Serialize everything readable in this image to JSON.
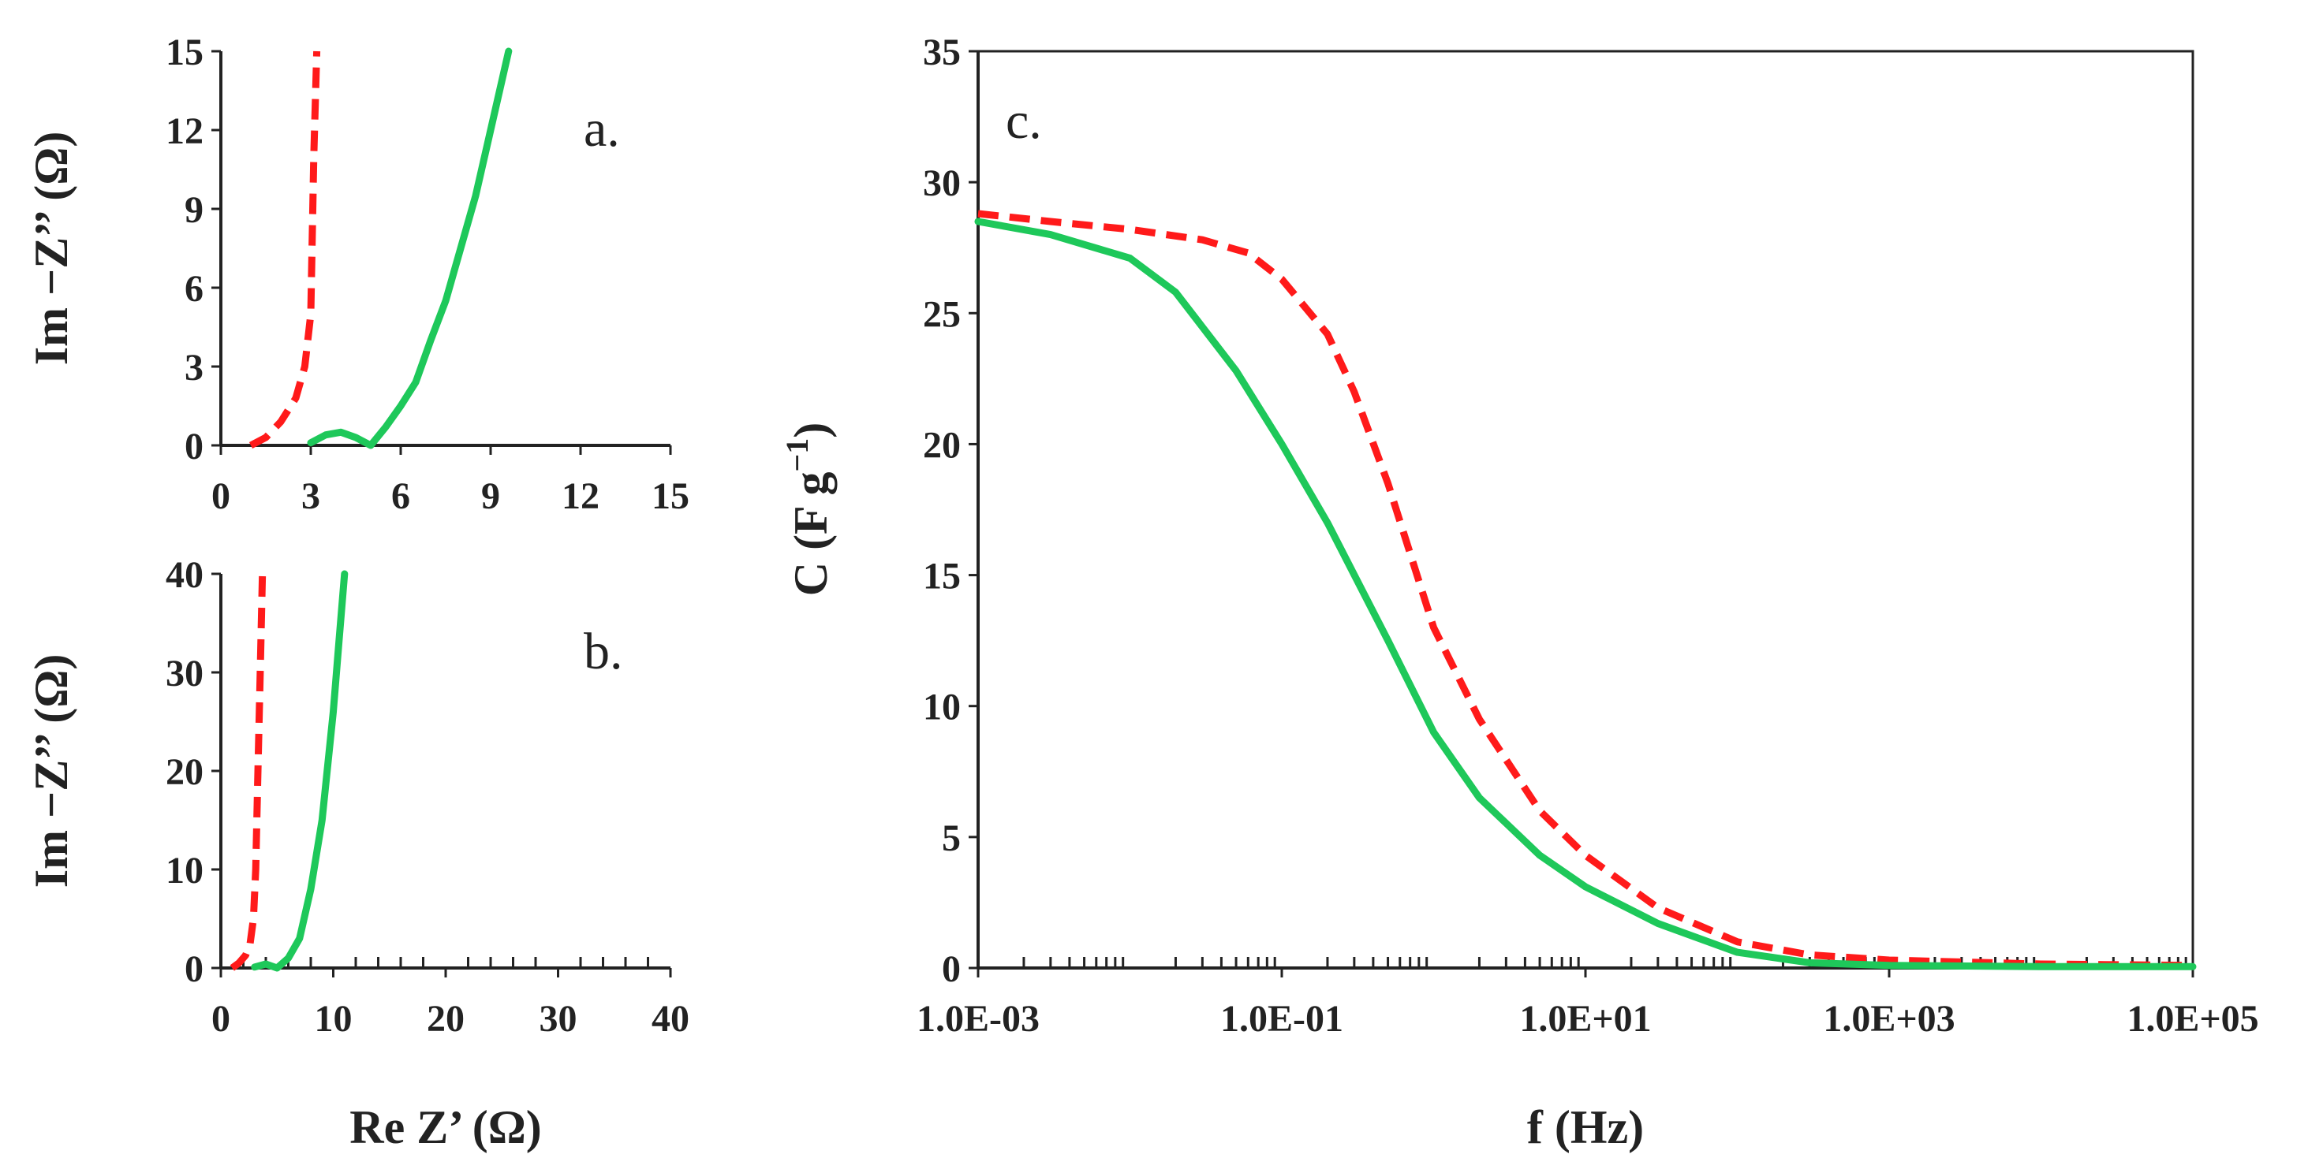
{
  "colors": {
    "series_a": "#ff1a1a",
    "series_b": "#1ec85a",
    "axis": "#222222"
  },
  "chart_data": [
    {
      "id": "a",
      "type": "line",
      "panel_label": "a.",
      "ylabel": "Im −Z’’ (Ω)",
      "xlabel": "",
      "xlim": [
        0,
        15
      ],
      "ylim": [
        0,
        15
      ],
      "xticks": [
        0,
        3,
        6,
        9,
        12,
        15
      ],
      "xtick_labels": [
        "0",
        "3",
        "6",
        "9",
        "12",
        "15"
      ],
      "yticks": [
        0,
        3,
        6,
        9,
        12,
        15
      ],
      "ytick_labels": [
        "0",
        "3",
        "6",
        "9",
        "12",
        "15"
      ],
      "series": [
        {
          "name": "red dashed",
          "style": "dashed",
          "color": "#ff1a1a",
          "x": [
            1.0,
            1.5,
            2.0,
            2.5,
            2.8,
            3.0,
            3.05,
            3.1,
            3.15,
            3.2
          ],
          "y": [
            0.0,
            0.3,
            0.9,
            1.8,
            3.0,
            5.0,
            8.0,
            11.0,
            13.0,
            15.0
          ]
        },
        {
          "name": "green solid",
          "style": "solid",
          "color": "#1ec85a",
          "x": [
            3.0,
            3.5,
            4.0,
            4.5,
            5.0,
            5.5,
            6.0,
            6.5,
            7.0,
            7.5,
            8.0,
            8.5,
            9.0,
            9.3,
            9.6
          ],
          "y": [
            0.1,
            0.4,
            0.5,
            0.3,
            0.0,
            0.7,
            1.5,
            2.4,
            4.0,
            5.5,
            7.5,
            9.5,
            12.0,
            13.5,
            15.0
          ]
        }
      ]
    },
    {
      "id": "b",
      "type": "line",
      "panel_label": "b.",
      "ylabel": "Im −Z’’ (Ω)",
      "xlabel": "Re Z’ (Ω)",
      "xlim": [
        0,
        40
      ],
      "ylim": [
        0,
        40
      ],
      "xticks": [
        0,
        10,
        20,
        30,
        40
      ],
      "xtick_labels": [
        "0",
        "10",
        "20",
        "30",
        "40"
      ],
      "yticks": [
        0,
        10,
        20,
        30,
        40
      ],
      "ytick_labels": [
        "0",
        "10",
        "20",
        "30",
        "40"
      ],
      "series": [
        {
          "name": "red dashed",
          "style": "dashed",
          "color": "#ff1a1a",
          "x": [
            1.0,
            1.6,
            2.2,
            2.6,
            2.9,
            3.1,
            3.3,
            3.5,
            3.7
          ],
          "y": [
            0.0,
            0.5,
            1.3,
            2.5,
            5.0,
            10.0,
            20.0,
            30.0,
            40.0
          ]
        },
        {
          "name": "green solid",
          "style": "solid",
          "color": "#1ec85a",
          "x": [
            3.0,
            4.0,
            5.0,
            6.0,
            7.0,
            8.0,
            9.0,
            10.0,
            10.5,
            11.0
          ],
          "y": [
            0.1,
            0.4,
            0.0,
            1.0,
            3.0,
            8.0,
            15.0,
            26.0,
            33.0,
            40.0
          ]
        }
      ]
    },
    {
      "id": "c",
      "type": "line",
      "panel_label": "c.",
      "ylabel": "C (F g",
      "ylabel_sup": "−1",
      "ylabel_close": ")",
      "xlabel": "f (Hz)",
      "xscale": "log",
      "xlim": [
        0.001,
        100000
      ],
      "ylim": [
        0,
        35
      ],
      "xticks": [
        0.001,
        0.1,
        10,
        1000,
        100000
      ],
      "xtick_labels": [
        "1.0E-03",
        "1.0E-01",
        "1.0E+01",
        "1.0E+03",
        "1.0E+05"
      ],
      "yticks": [
        0,
        5,
        10,
        15,
        20,
        25,
        30,
        35
      ],
      "ytick_labels": [
        "0",
        "5",
        "10",
        "15",
        "20",
        "25",
        "30",
        "35"
      ],
      "series": [
        {
          "name": "red dashed",
          "style": "dashed",
          "color": "#ff1a1a",
          "x": [
            0.001,
            0.003,
            0.01,
            0.03,
            0.06,
            0.1,
            0.2,
            0.3,
            0.5,
            1,
            2,
            5,
            10,
            30,
            100,
            300,
            1000,
            10000,
            100000
          ],
          "y": [
            28.8,
            28.5,
            28.2,
            27.8,
            27.3,
            26.3,
            24.2,
            22.0,
            18.5,
            13.0,
            9.5,
            6.0,
            4.3,
            2.3,
            1.0,
            0.5,
            0.3,
            0.15,
            0.1
          ]
        },
        {
          "name": "green solid",
          "style": "solid",
          "color": "#1ec85a",
          "x": [
            0.001,
            0.003,
            0.01,
            0.02,
            0.05,
            0.1,
            0.2,
            0.5,
            1,
            2,
            5,
            10,
            30,
            100,
            300,
            1000,
            10000,
            100000
          ],
          "y": [
            28.5,
            28.0,
            27.1,
            25.8,
            22.8,
            20.0,
            17.0,
            12.5,
            9.0,
            6.5,
            4.3,
            3.1,
            1.7,
            0.6,
            0.2,
            0.1,
            0.05,
            0.05
          ]
        }
      ]
    }
  ]
}
